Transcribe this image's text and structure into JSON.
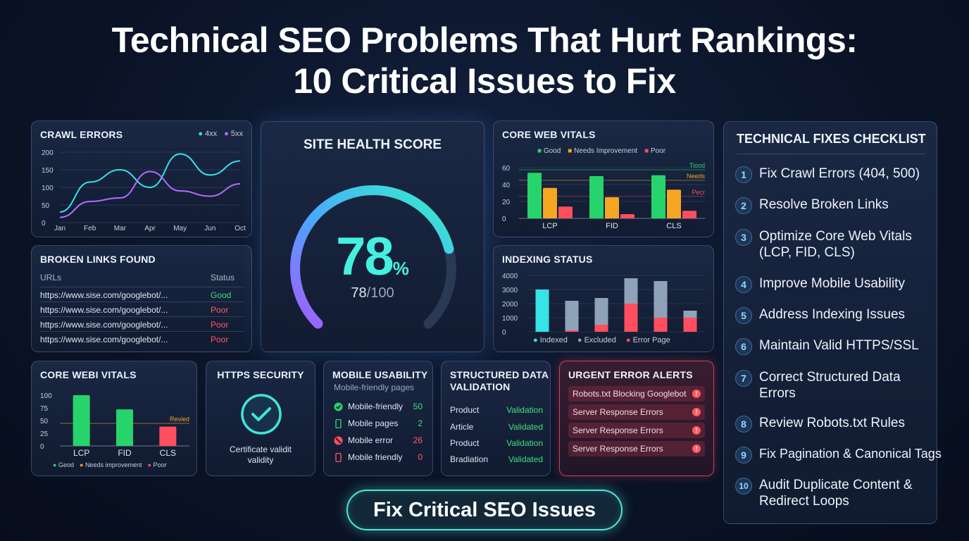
{
  "title": {
    "line1": "Technical SEO Problems That Hurt Rankings:",
    "line2": "10 Critical Issues to Fix"
  },
  "crawl_errors": {
    "title": "CRAWL ERRORS",
    "legend": [
      "4xx",
      "5xx"
    ],
    "colors": {
      "4xx": "#35e3e8",
      "5xx": "#b36bff"
    }
  },
  "broken_links": {
    "title": "BROKEN LINKS FOUND",
    "col_url": "URLs",
    "col_status": "Status",
    "rows": [
      {
        "url": "https://www.sise.com/googlebot/...",
        "status": "Good"
      },
      {
        "url": "https://www.sise.com/googlebot/...",
        "status": "Poor"
      },
      {
        "url": "https://www.sise.com/googlebot/...",
        "status": "Poor"
      },
      {
        "url": "https://www.sise.com/googlebot/...",
        "status": "Poor"
      }
    ]
  },
  "site_health": {
    "title": "SITE HEALTH SCORE",
    "score": "78",
    "unit": "%",
    "sub_score": "78",
    "sub_total": "/100",
    "value": 78
  },
  "core_web_vitals_top": {
    "title": "CORE WEB VITALS",
    "legend": [
      "Good",
      "Needs Improvement",
      "Poor"
    ],
    "threshold_labels": [
      "Tiood",
      "Needs",
      "Pecr"
    ]
  },
  "indexing": {
    "title": "INDEXING STATUS",
    "legend": [
      "Indexed",
      "Excluded",
      "Error Page"
    ]
  },
  "core_web_vitals_bottom": {
    "title": "CORE WEBI VITALS",
    "threshold_label": "Revied",
    "legend": [
      "Geod",
      "Needs improvement",
      "Poor"
    ]
  },
  "https_security": {
    "title": "HTTPS SECURITY",
    "caption_line1": "Certificate validit",
    "caption_line2": "validity"
  },
  "mobile_usability": {
    "title": "MOBILE USABILITY",
    "subtitle": "Mobile-friendly pages",
    "rows": [
      {
        "label": "Mobile-friendly",
        "value": "50",
        "icon": "check-circle-icon",
        "color": "#3ee07f"
      },
      {
        "label": "Mobile pages",
        "value": "2",
        "icon": "phone-icon",
        "color": "#3ee07f"
      },
      {
        "label": "Mobile error",
        "value": "26",
        "icon": "blocked-icon",
        "color": "#ff5a64"
      },
      {
        "label": "Mobile friendly",
        "value": "0",
        "icon": "phone-icon",
        "color": "#ff5a64"
      }
    ]
  },
  "structured_data": {
    "title_line1": "STRUCTURED DATA",
    "title_line2": "VALIDATION",
    "rows": [
      {
        "label": "Product",
        "value": "Validation"
      },
      {
        "label": "Article",
        "value": "Validated"
      },
      {
        "label": "Product",
        "value": "Validation"
      },
      {
        "label": "Bradiation",
        "value": "Validated"
      }
    ]
  },
  "urgent_alerts": {
    "title": "URGENT ERROR ALERTS",
    "items": [
      "Robots.txt Blocking Googlebot",
      "Server Response Errors",
      "Server Response Errors",
      "Server Response Errors"
    ]
  },
  "checklist": {
    "title": "TECHNICAL FIXES CHECKLIST",
    "items": [
      {
        "num": "1",
        "text": "Fix Crawl Errors (404, 500)"
      },
      {
        "num": "2",
        "text": "Resolve Broken Links"
      },
      {
        "num": "3",
        "text": "Optimize Core Web Vitals (LCP, FID, CLS)"
      },
      {
        "num": "4",
        "text": "Improve Mobile Usability"
      },
      {
        "num": "5",
        "text": "Address Indexing Issues"
      },
      {
        "num": "6",
        "text": "Maintain Valid HTTPS/SSL"
      },
      {
        "num": "7",
        "text": "Correct Structured Data Errors"
      },
      {
        "num": "8",
        "text": "Review Robots.txt Rules"
      },
      {
        "num": "9",
        "text": "Fix Pagination & Canonical Tags"
      },
      {
        "num": "10",
        "text": "Audit Duplicate Content & Redirect Loops"
      }
    ]
  },
  "cta": {
    "label": "Fix Critical SEO Issues"
  },
  "chart_data": [
    {
      "id": "crawl_errors",
      "type": "line",
      "x": [
        "Jan",
        "Feb",
        "Mar",
        "Apr",
        "May",
        "Jun",
        "Oct"
      ],
      "series": [
        {
          "name": "4xx",
          "values": [
            30,
            115,
            150,
            100,
            195,
            135,
            175
          ]
        },
        {
          "name": "5xx",
          "values": [
            15,
            60,
            70,
            145,
            90,
            75,
            110
          ]
        }
      ],
      "ylim": [
        0,
        200
      ],
      "yticks": [
        0,
        50,
        100,
        150,
        200
      ]
    },
    {
      "id": "cwv_top",
      "type": "bar",
      "categories": [
        "LCP",
        "FID",
        "CLS"
      ],
      "series": [
        {
          "name": "Good",
          "values": [
            54,
            50,
            51
          ],
          "color": "#27d46b"
        },
        {
          "name": "Needs Improvement",
          "values": [
            36,
            25,
            34
          ],
          "color": "#f5a623"
        },
        {
          "name": "Poor",
          "values": [
            14,
            5,
            9
          ],
          "color": "#ff4f5e"
        }
      ],
      "ylim": [
        0,
        60
      ],
      "yticks": [
        0,
        20,
        40,
        60
      ]
    },
    {
      "id": "indexing",
      "type": "bar",
      "categories": [
        "",
        "",
        "",
        "",
        "",
        ""
      ],
      "series": [
        {
          "name": "Indexed",
          "values": [
            3000,
            0,
            0,
            0,
            0,
            0
          ],
          "color": "#35e3e8"
        },
        {
          "name": "Excluded",
          "values": [
            0,
            2200,
            2400,
            3800,
            3600,
            1500
          ],
          "color": "#8fa3b8"
        },
        {
          "name": "Error Page",
          "values": [
            0,
            100,
            500,
            2000,
            1000,
            1000
          ],
          "color": "#ff4f5e"
        }
      ],
      "ylim": [
        0,
        4000
      ],
      "yticks": [
        0,
        1000,
        2000,
        3000,
        4000
      ]
    },
    {
      "id": "cwv_bottom",
      "type": "bar",
      "categories": [
        "LCP",
        "FID",
        "CLS"
      ],
      "values": [
        100,
        72,
        38
      ],
      "colors": [
        "#27d46b",
        "#27d46b",
        "#ff4f5e"
      ],
      "ylim": [
        0,
        100
      ],
      "yticks": [
        0,
        25,
        50,
        75,
        100
      ]
    }
  ]
}
